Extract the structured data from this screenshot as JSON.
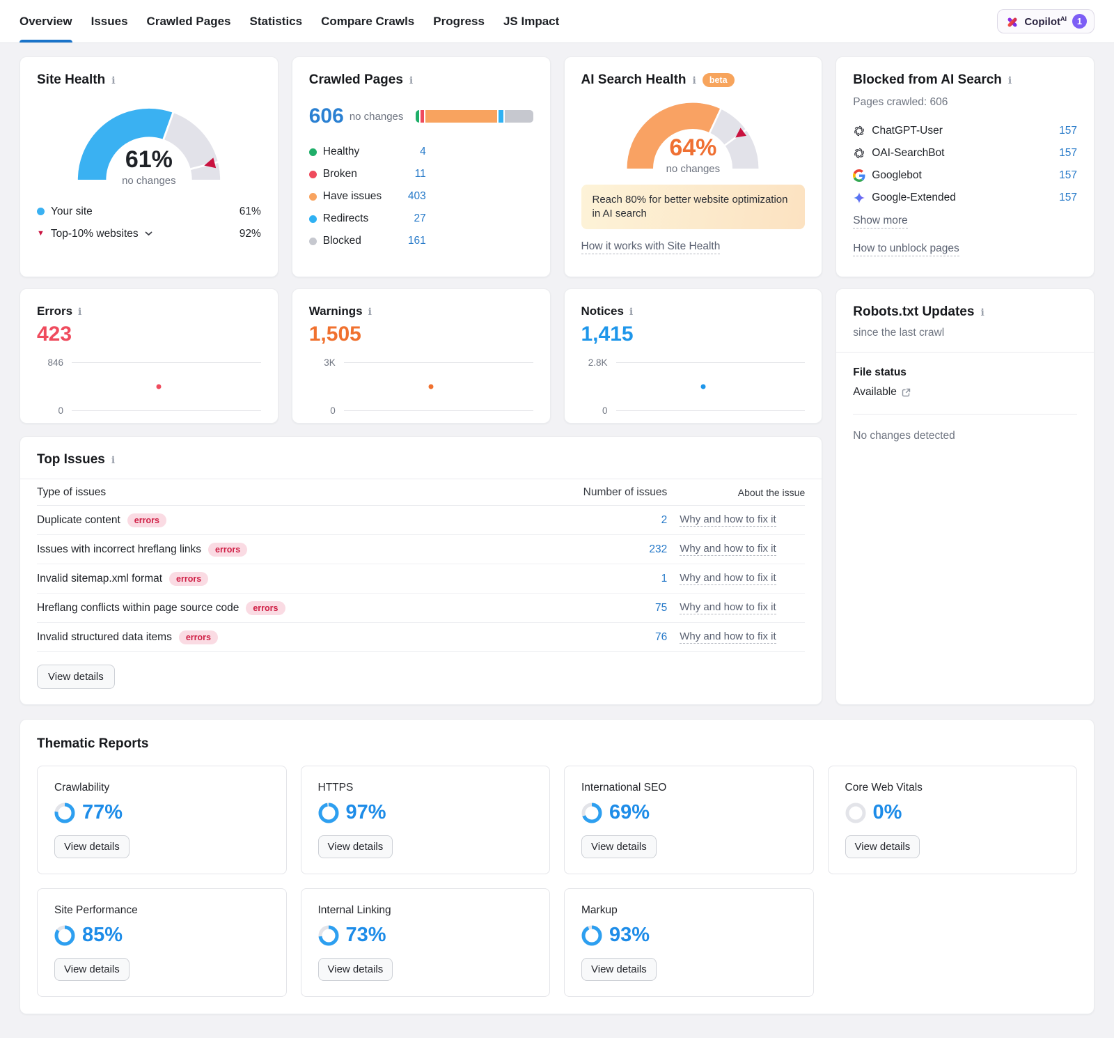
{
  "icons": {
    "info": "i",
    "triangle_down": "▼"
  },
  "nav": {
    "tabs": [
      {
        "label": "Overview"
      },
      {
        "label": "Issues"
      },
      {
        "label": "Crawled Pages"
      },
      {
        "label": "Statistics"
      },
      {
        "label": "Compare Crawls"
      },
      {
        "label": "Progress"
      },
      {
        "label": "JS Impact"
      }
    ],
    "copilot": {
      "label": "Copilot",
      "sup": "AI",
      "badge": "1"
    }
  },
  "site_health": {
    "title": "Site Health",
    "gauge": {
      "value": 61,
      "value_label": "61%",
      "sub": "no changes",
      "benchmark": 92,
      "color": "#3ab1f2",
      "track": "#e2e2e9",
      "marker_color": "#c9123f"
    },
    "legend": [
      {
        "label": "Your site",
        "value": "61%"
      },
      {
        "label": "Top-10% websites",
        "value": "92%"
      }
    ]
  },
  "crawled_pages": {
    "title": "Crawled Pages",
    "total": "606",
    "total_sub": "no changes",
    "segments": [
      {
        "label": "Healthy",
        "value": 4,
        "display": "4",
        "color": "#1fae69"
      },
      {
        "label": "Broken",
        "value": 11,
        "display": "11",
        "color": "#ef4b5d"
      },
      {
        "label": "Have issues",
        "value": 403,
        "display": "403",
        "color": "#f8a35f"
      },
      {
        "label": "Redirects",
        "value": 27,
        "display": "27",
        "color": "#2fb1f3"
      },
      {
        "label": "Blocked",
        "value": 161,
        "display": "161",
        "color": "#c6c8cf"
      }
    ]
  },
  "ai_search_health": {
    "title": "AI Search Health",
    "beta": "beta",
    "gauge": {
      "value": 64,
      "value_label": "64%",
      "sub": "no changes",
      "benchmark": 80,
      "color": "#f9a263",
      "track": "#e2e2e9",
      "marker_color": "#c9123f"
    },
    "callout": "Reach 80% for better website optimization in AI search",
    "link": "How it works with Site Health"
  },
  "blocked_ai": {
    "title": "Blocked from AI Search",
    "subtitle": "Pages crawled: 606",
    "bots": [
      {
        "name": "ChatGPT-User",
        "icon": "openai-icon",
        "value": "157"
      },
      {
        "name": "OAI-SearchBot",
        "icon": "openai-icon",
        "value": "157"
      },
      {
        "name": "Googlebot",
        "icon": "google-icon",
        "value": "157"
      },
      {
        "name": "Google-Extended",
        "icon": "google-extended-icon",
        "value": "157"
      }
    ],
    "show_more": "Show more",
    "link": "How to unblock pages"
  },
  "metrics": [
    {
      "title": "Errors",
      "value": "423",
      "value_num": 423,
      "axis_top": "846",
      "axis_top_value": 846,
      "axis_bottom": "0",
      "color": "#ef4b5d",
      "dot_x": 0.46
    },
    {
      "title": "Warnings",
      "value": "1,505",
      "value_num": 1505,
      "axis_top": "3K",
      "axis_top_value": 3000,
      "axis_bottom": "0",
      "color": "#f0712f",
      "dot_x": 0.46
    },
    {
      "title": "Notices",
      "value": "1,415",
      "value_num": 1415,
      "axis_top": "2.8K",
      "axis_top_value": 2800,
      "axis_bottom": "0",
      "color": "#1e96ea",
      "dot_x": 0.46
    }
  ],
  "robots": {
    "title": "Robots.txt Updates",
    "subtitle": "since the last crawl",
    "file_status_label": "File status",
    "file_status_value": "Available",
    "no_changes": "No changes detected"
  },
  "top_issues": {
    "title": "Top Issues",
    "columns": [
      "Type of issues",
      "Number of issues",
      "About the issue"
    ],
    "rows": [
      {
        "label": "Duplicate content",
        "badge": "errors",
        "count": "2",
        "link": "Why and how to fix it"
      },
      {
        "label": "Issues with incorrect hreflang links",
        "badge": "errors",
        "count": "232",
        "link": "Why and how to fix it"
      },
      {
        "label": "Invalid sitemap.xml format",
        "badge": "errors",
        "count": "1",
        "link": "Why and how to fix it"
      },
      {
        "label": "Hreflang conflicts within page source code",
        "badge": "errors",
        "count": "75",
        "link": "Why and how to fix it"
      },
      {
        "label": "Invalid structured data items",
        "badge": "errors",
        "count": "76",
        "link": "Why and how to fix it"
      }
    ],
    "view_details": "View details"
  },
  "thematic": {
    "title": "Thematic Reports",
    "view_details": "View details",
    "accent": "#1d8ce8",
    "reports": [
      {
        "label": "Crawlability",
        "value": 77,
        "value_label": "77%"
      },
      {
        "label": "HTTPS",
        "value": 97,
        "value_label": "97%"
      },
      {
        "label": "International SEO",
        "value": 69,
        "value_label": "69%"
      },
      {
        "label": "Core Web Vitals",
        "value": 0,
        "value_label": "0%"
      },
      {
        "label": "Site Performance",
        "value": 85,
        "value_label": "85%"
      },
      {
        "label": "Internal Linking",
        "value": 73,
        "value_label": "73%"
      },
      {
        "label": "Markup",
        "value": 93,
        "value_label": "93%"
      }
    ]
  }
}
